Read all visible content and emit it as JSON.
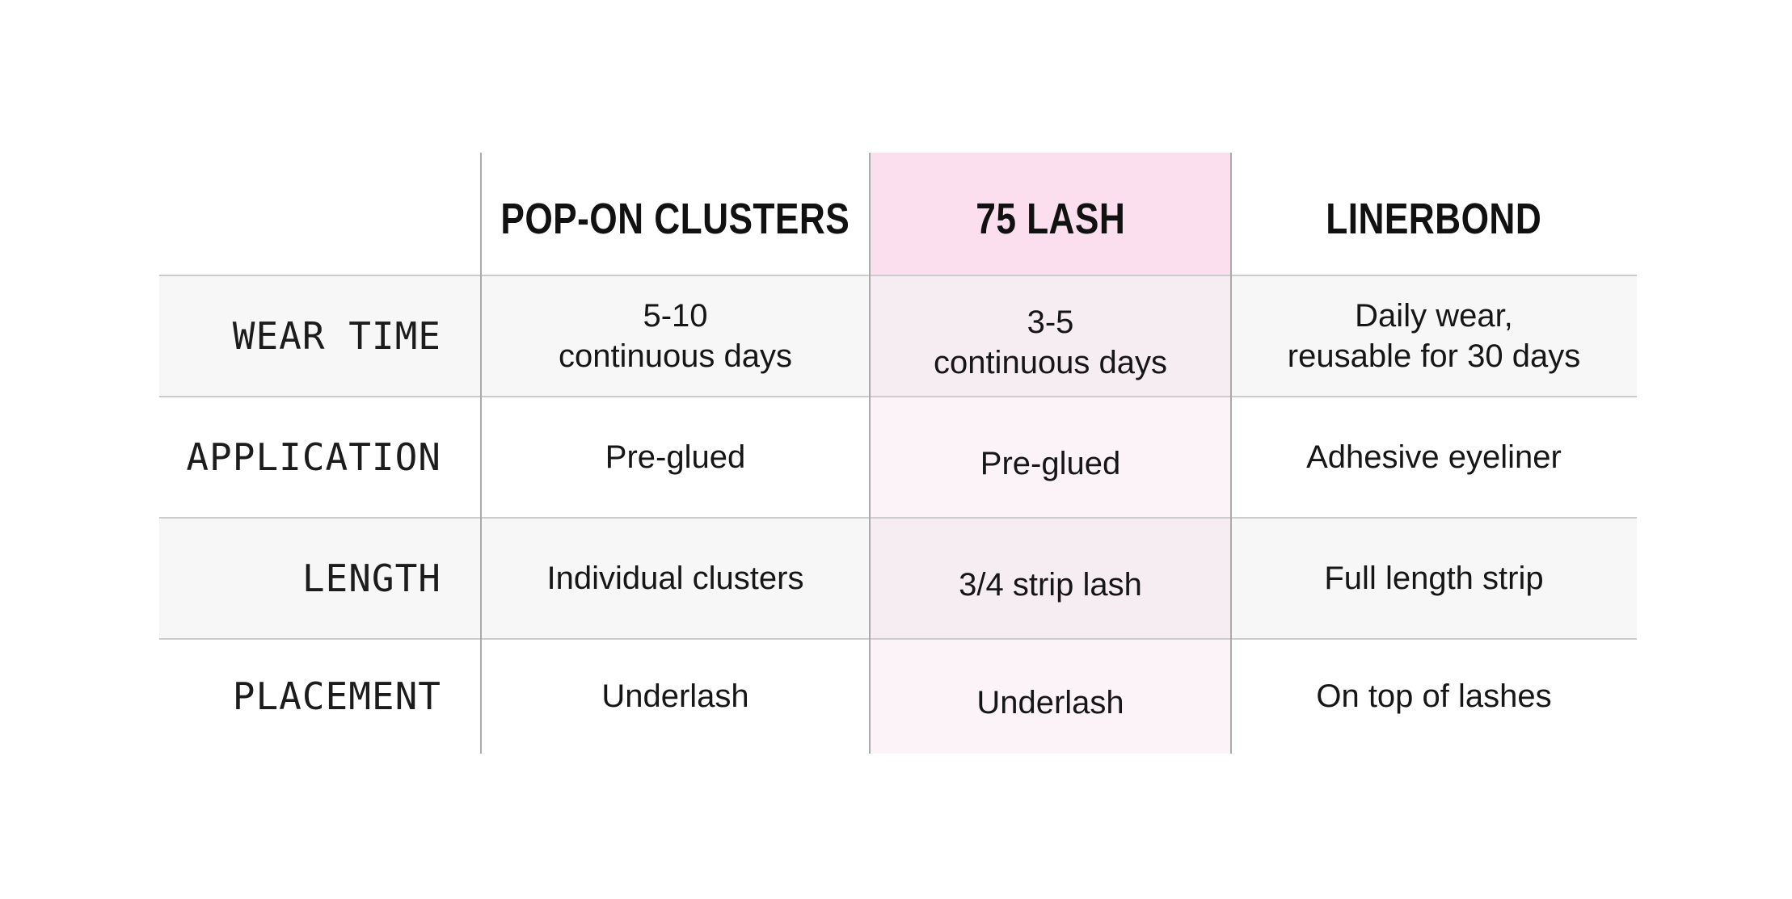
{
  "table": {
    "headers": [
      {
        "label": "POP-ON CLUSTERS",
        "highlighted": false
      },
      {
        "label": "75 LASH",
        "highlighted": true
      },
      {
        "label": "LINERBOND",
        "highlighted": false
      }
    ],
    "rows": [
      {
        "label": "WEAR TIME",
        "pop_on_clusters": "5-10\ncontinuous days",
        "lash_75": "3-5\ncontinuous days",
        "linerbond": "Daily wear,\nreusable for 30 days"
      },
      {
        "label": "APPLICATION",
        "pop_on_clusters": "Pre-glued",
        "lash_75": "Pre-glued",
        "linerbond": "Adhesive eyeliner"
      },
      {
        "label": "LENGTH",
        "pop_on_clusters": "Individual clusters",
        "lash_75": "3/4 strip lash",
        "linerbond": "Full length strip"
      },
      {
        "label": "PLACEMENT",
        "pop_on_clusters": "Underlash",
        "lash_75": "Underlash",
        "linerbond": "On top of lashes"
      }
    ]
  },
  "colors": {
    "highlight_header_bg": "#fcdfee",
    "highlight_column_tint": "#f9f0f5",
    "stripe_row_bg": "#f7f7f7",
    "grid_line_vertical": "#aaaaaa",
    "grid_line_horizontal": "#cccccc",
    "text": "#1a1a1a"
  },
  "chart_data": {
    "type": "table",
    "title": "",
    "columns": [
      "",
      "POP-ON CLUSTERS",
      "75 LASH",
      "LINERBOND"
    ],
    "highlighted_column": "75 LASH",
    "rows": [
      [
        "WEAR TIME",
        "5-10 continuous days",
        "3-5 continuous days",
        "Daily wear, reusable for 30 days"
      ],
      [
        "APPLICATION",
        "Pre-glued",
        "Pre-glued",
        "Adhesive eyeliner"
      ],
      [
        "LENGTH",
        "Individual clusters",
        "3/4 strip lash",
        "Full length strip"
      ],
      [
        "PLACEMENT",
        "Underlash",
        "Underlash",
        "On top of lashes"
      ]
    ]
  }
}
